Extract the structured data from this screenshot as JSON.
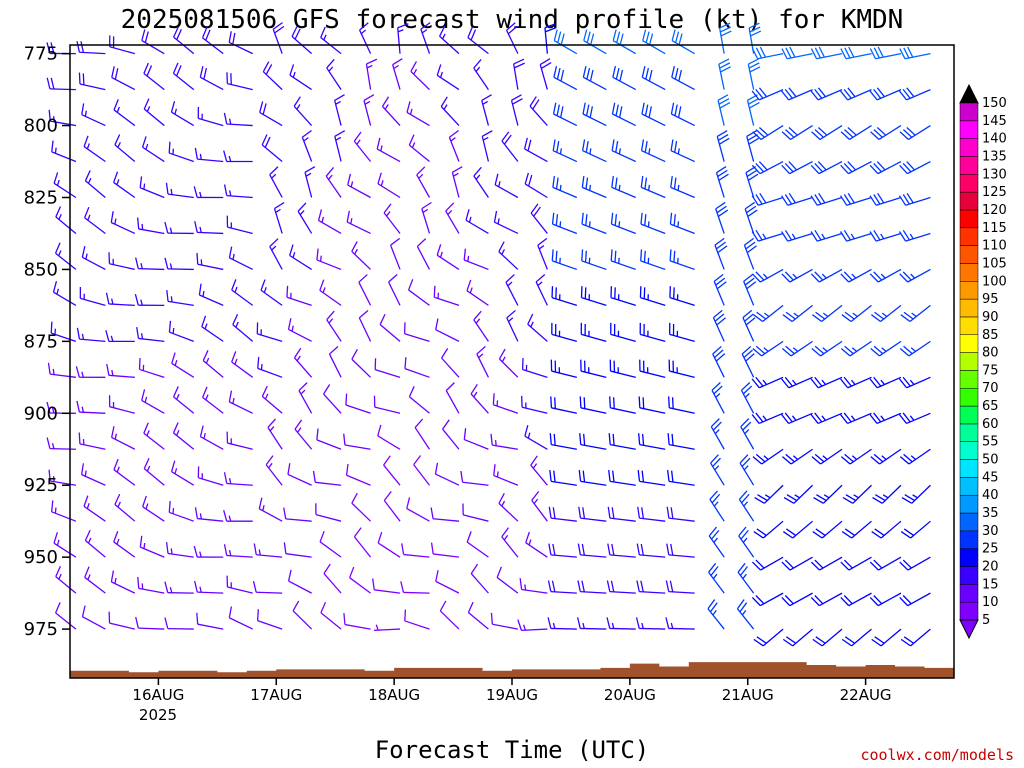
{
  "title": "2025081506 GFS forecast wind profile (kt) for KMDN",
  "xlabel": "Forecast Time (UTC)",
  "credit": "coolwx.com/models",
  "chart_data": {
    "type": "wind_barb_profile",
    "title": "2025081506 GFS forecast wind profile (kt) for KMDN",
    "xlabel": "Forecast Time (UTC)",
    "y_axis": {
      "reversed": true,
      "ticks": [
        775,
        800,
        825,
        850,
        875,
        900,
        925,
        950,
        975
      ],
      "range": [
        772,
        992
      ]
    },
    "x_axis": {
      "ticks": [
        "16AUG",
        "17AUG",
        "18AUG",
        "19AUG",
        "20AUG",
        "21AUG",
        "22AUG"
      ],
      "sublabel": "2025",
      "range_days": [
        15.25,
        22.75
      ]
    },
    "colorbar": {
      "levels": [
        5,
        10,
        15,
        20,
        25,
        30,
        35,
        40,
        45,
        50,
        55,
        60,
        65,
        70,
        75,
        80,
        85,
        90,
        95,
        100,
        105,
        110,
        115,
        120,
        125,
        130,
        135,
        140,
        145,
        150
      ],
      "colors": [
        "#7f00ff",
        "#6a00ff",
        "#3a00ff",
        "#0000ff",
        "#0033ff",
        "#0066ff",
        "#0099ff",
        "#00bfff",
        "#00e5ff",
        "#00ffcc",
        "#00ff99",
        "#00ff55",
        "#33ff00",
        "#66ff00",
        "#b3ff00",
        "#ffff00",
        "#ffdd00",
        "#ffbb00",
        "#ff9900",
        "#ff7700",
        "#ff5500",
        "#ff3300",
        "#ff0000",
        "#e6003c",
        "#ff0066",
        "#ff0099",
        "#ff00cc",
        "#ff00ff",
        "#cc00cc"
      ]
    },
    "terrain_color": "#a0522d",
    "wind_speed_range_kt": [
      5,
      40
    ],
    "dominant_direction_summary": "westerly to northwesterly aloft early, shifting southwesterly near surface late; strongest (~30 kt) mid-levels on 20-21AUG"
  }
}
